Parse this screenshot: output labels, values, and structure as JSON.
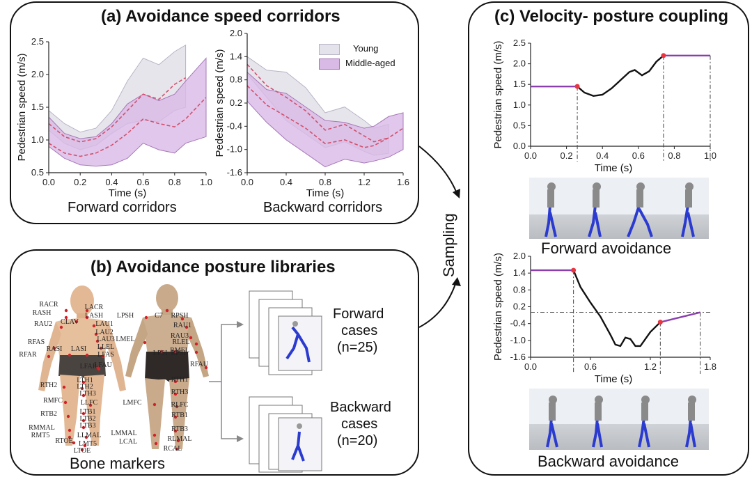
{
  "panel_a": {
    "title": "(a) Avoidance speed corridors",
    "forward_caption": "Forward corridors",
    "backward_caption": "Backward corridors",
    "legend": {
      "young": "Young",
      "middle_aged": "Middle-aged"
    },
    "colors": {
      "young_fill": "#e4e2ea",
      "young_edge": "#b8b4c6",
      "middle_fill": "#d9b9e6",
      "middle_edge": "#a678b8",
      "mean_line": "#d24f6e"
    }
  },
  "panel_b": {
    "title": "(b) Avoidance posture libraries",
    "caption": "Bone markers",
    "forward_cases": {
      "line1": "Forward",
      "line2": "cases",
      "line3": "(n=25)"
    },
    "backward_cases": {
      "line1": "Backward",
      "line2": "cases",
      "line3": "(n=20)"
    },
    "front_markers": [
      "RACR",
      "LACR",
      "RASH",
      "LASH",
      "CLAV",
      "RAU2",
      "LAU1",
      "LAU2",
      "LAU3",
      "RFAS",
      "LLEL",
      "RFAR",
      "LFAS",
      "RASI",
      "LASI",
      "LFAR",
      "LFAU",
      "RTH2",
      "LTH1",
      "LTH2",
      "LTH3",
      "RMFC",
      "LLFC",
      "RTB2",
      "LTB1",
      "LTB2",
      "LTB3",
      "RMMAL",
      "LLMAL",
      "RMT5",
      "LMT5",
      "RTOE",
      "LTOE"
    ],
    "back_markers": [
      "LPSH",
      "C7",
      "RPSH",
      "RAU1",
      "RAU3",
      "LMEL",
      "RLEL",
      "LPSI",
      "RPSI",
      "RMEL",
      "RFAU",
      "RTH1",
      "RTH3",
      "LMFC",
      "RLFC",
      "RTB1",
      "LMMAL",
      "RTB3",
      "LCAL",
      "RLMAL",
      "RCAL"
    ]
  },
  "middle": {
    "sampling_label": "Sampling"
  },
  "panel_c": {
    "title": "(c) Velocity- posture coupling",
    "forward_caption": "Forward avoidance",
    "backward_caption": "Backward avoidance",
    "colors": {
      "curve": "#111111",
      "segment": "#8b3fae",
      "marker": "#e8353f"
    }
  },
  "chart_data": [
    {
      "type": "area",
      "title": "Forward corridors",
      "xlabel": "Time (s)",
      "ylabel": "Pedestrian speed (m/s)",
      "xlim": [
        0.0,
        1.0
      ],
      "ylim": [
        0.5,
        2.5
      ],
      "xticks": [
        "0.0",
        "0.2",
        "0.4",
        "0.6",
        "0.8",
        "1.0"
      ],
      "yticks": [
        "0.5",
        "1.0",
        "1.5",
        "2.0",
        "2.5"
      ],
      "x": [
        0.0,
        0.1,
        0.2,
        0.3,
        0.4,
        0.5,
        0.6,
        0.7,
        0.8,
        0.87,
        1.0
      ],
      "series": [
        {
          "name": "Young",
          "x_end": 0.87,
          "upper": [
            1.45,
            1.25,
            1.12,
            1.18,
            1.45,
            1.9,
            2.25,
            2.15,
            2.35,
            2.45,
            null
          ],
          "lower": [
            1.15,
            0.95,
            0.85,
            0.92,
            1.1,
            1.25,
            1.3,
            1.28,
            1.45,
            1.5,
            null
          ],
          "mean": [
            1.25,
            1.05,
            0.97,
            1.02,
            1.2,
            1.45,
            1.7,
            1.62,
            1.85,
            1.95,
            null
          ]
        },
        {
          "name": "Middle-aged",
          "x_end": 1.0,
          "upper": [
            1.35,
            1.1,
            1.02,
            1.05,
            1.25,
            1.55,
            1.7,
            1.6,
            1.7,
            1.9,
            2.25
          ],
          "lower": [
            0.9,
            0.72,
            0.62,
            0.6,
            0.62,
            0.72,
            0.95,
            0.85,
            0.8,
            0.95,
            1.05
          ],
          "mean": [
            0.95,
            0.8,
            0.75,
            0.8,
            0.92,
            1.1,
            1.32,
            1.25,
            1.2,
            1.32,
            1.65
          ]
        }
      ]
    },
    {
      "type": "area",
      "title": "Backward corridors",
      "xlabel": "Time (s)",
      "ylabel": "Pedestrian speed (m/s)",
      "xlim": [
        0.0,
        1.6
      ],
      "ylim": [
        -1.6,
        2.0
      ],
      "xticks": [
        "0.0",
        "0.4",
        "0.8",
        "1.2",
        "1.6"
      ],
      "yticks": [
        "2.0",
        "1.4",
        "0.8",
        "0.2",
        "-0.4",
        "-1.0",
        "-1.6"
      ],
      "x": [
        0.0,
        0.2,
        0.4,
        0.6,
        0.8,
        1.0,
        1.2,
        1.3,
        1.45,
        1.6
      ],
      "series": [
        {
          "name": "Young",
          "x_end": 1.45,
          "upper": [
            1.4,
            1.05,
            1.0,
            0.6,
            -0.05,
            0.1,
            -0.25,
            -0.45,
            -0.35,
            null
          ],
          "lower": [
            0.95,
            0.35,
            -0.25,
            -0.6,
            -0.95,
            -0.8,
            -1.05,
            -1.15,
            -1.1,
            null
          ],
          "mean": [
            1.2,
            0.65,
            0.35,
            0.0,
            -0.5,
            -0.35,
            -0.65,
            -0.8,
            -0.7,
            null
          ]
        },
        {
          "name": "Middle-aged",
          "x_end": 1.6,
          "upper": [
            1.0,
            0.55,
            0.45,
            0.1,
            -0.25,
            -0.3,
            -0.45,
            -0.4,
            -0.15,
            -0.05
          ],
          "lower": [
            0.25,
            -0.3,
            -0.75,
            -1.1,
            -1.45,
            -1.25,
            -1.35,
            -1.3,
            -1.2,
            -1.0
          ],
          "mean": [
            0.65,
            0.15,
            -0.15,
            -0.45,
            -0.85,
            -0.75,
            -0.95,
            -0.9,
            -0.7,
            -0.45
          ]
        }
      ]
    },
    {
      "type": "line",
      "title": "Forward avoidance",
      "xlabel": "Time (s)",
      "ylabel": "Pedestrian speed (m/s)",
      "xlim": [
        0.0,
        1.0
      ],
      "ylim": [
        0.0,
        2.5
      ],
      "xticks": [
        "0.0",
        "0.2",
        "0.4",
        "0.6",
        "0.8",
        "1.0"
      ],
      "yticks": [
        "0.0",
        "0.5",
        "1.0",
        "1.5",
        "2.0",
        "2.5"
      ],
      "segments": [
        {
          "name": "pre",
          "x": [
            0.0,
            0.26
          ],
          "y": [
            1.45,
            1.45
          ],
          "style": "purple"
        },
        {
          "name": "avoid",
          "x": [
            0.26,
            0.3,
            0.35,
            0.4,
            0.45,
            0.5,
            0.55,
            0.58,
            0.62,
            0.66,
            0.7,
            0.74
          ],
          "y": [
            1.45,
            1.3,
            1.22,
            1.25,
            1.4,
            1.6,
            1.8,
            1.85,
            1.72,
            1.82,
            2.05,
            2.2
          ],
          "style": "black"
        },
        {
          "name": "post",
          "x": [
            0.74,
            1.0
          ],
          "y": [
            2.2,
            2.2
          ],
          "style": "purple"
        }
      ],
      "markers": [
        {
          "x": 0.26,
          "y": 1.45
        },
        {
          "x": 0.74,
          "y": 2.2
        }
      ]
    },
    {
      "type": "line",
      "title": "Backward avoidance",
      "xlabel": "Time (s)",
      "ylabel": "Pedestrian speed (m/s)",
      "xlim": [
        0.0,
        1.8
      ],
      "ylim": [
        -1.6,
        2.0
      ],
      "xticks": [
        "0.0",
        "0.6",
        "1.2",
        "1.8"
      ],
      "yticks": [
        "2.0",
        "1.4",
        "0.8",
        "0.2",
        "-0.4",
        "-1.0",
        "-1.6"
      ],
      "reference_y": 0.0,
      "segments": [
        {
          "name": "pre",
          "x": [
            0.0,
            0.43
          ],
          "y": [
            1.5,
            1.5
          ],
          "style": "purple"
        },
        {
          "name": "avoid",
          "x": [
            0.43,
            0.5,
            0.6,
            0.7,
            0.8,
            0.85,
            0.9,
            0.95,
            1.0,
            1.05,
            1.1,
            1.2,
            1.3
          ],
          "y": [
            1.5,
            0.9,
            0.35,
            -0.15,
            -0.8,
            -1.15,
            -1.2,
            -0.9,
            -0.95,
            -1.2,
            -1.2,
            -0.7,
            -0.35
          ],
          "style": "black"
        },
        {
          "name": "post",
          "x": [
            1.3,
            1.7
          ],
          "y": [
            -0.35,
            0.0
          ],
          "style": "purple"
        }
      ],
      "markers": [
        {
          "x": 0.43,
          "y": 1.5
        },
        {
          "x": 1.3,
          "y": -0.35
        }
      ]
    }
  ]
}
